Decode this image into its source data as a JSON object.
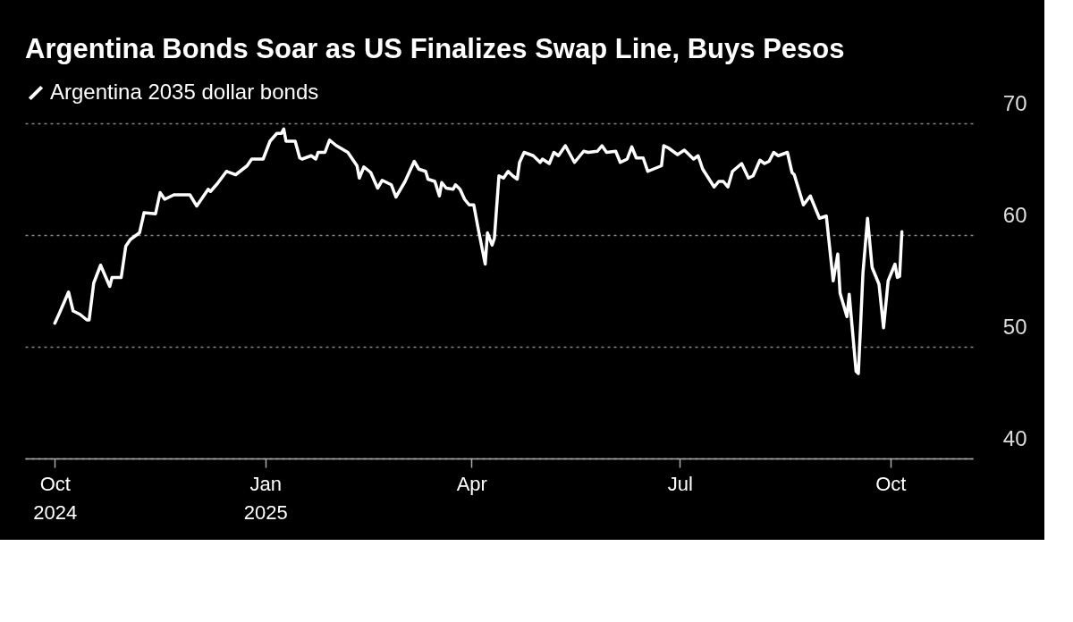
{
  "chart_data": {
    "type": "line",
    "title": "Argentina Bonds Soar as US Finalizes Swap Line, Buys Pesos",
    "x": [
      "2024-10-01",
      "2024-10-03",
      "2024-10-07",
      "2024-10-09",
      "2024-10-12",
      "2024-10-15",
      "2024-10-16",
      "2024-10-18",
      "2024-10-21",
      "2024-10-25",
      "2024-10-26",
      "2024-10-30",
      "2024-11-01",
      "2024-11-03",
      "2024-11-07",
      "2024-11-09",
      "2024-11-14",
      "2024-11-16",
      "2024-11-18",
      "2024-11-22",
      "2024-11-29",
      "2024-12-02",
      "2024-12-07",
      "2024-12-08",
      "2024-12-11",
      "2024-12-15",
      "2024-12-19",
      "2024-12-24",
      "2024-12-26",
      "2024-12-31",
      "2025-01-03",
      "2025-01-06",
      "2025-01-08",
      "2025-01-09",
      "2025-01-10",
      "2025-01-14",
      "2025-01-16",
      "2025-01-17",
      "2025-01-21",
      "2025-01-23",
      "2025-01-24",
      "2025-01-27",
      "2025-01-29",
      "2025-02-01",
      "2025-02-06",
      "2025-02-10",
      "2025-02-11",
      "2025-02-13",
      "2025-02-16",
      "2025-02-19",
      "2025-02-21",
      "2025-02-25",
      "2025-02-27",
      "2025-03-03",
      "2025-03-07",
      "2025-03-09",
      "2025-03-12",
      "2025-03-13",
      "2025-03-16",
      "2025-03-18",
      "2025-03-19",
      "2025-03-21",
      "2025-03-24",
      "2025-03-25",
      "2025-03-27",
      "2025-03-29",
      "2025-03-31",
      "2025-04-02",
      "2025-04-04",
      "2025-04-07",
      "2025-04-08",
      "2025-04-10",
      "2025-04-11",
      "2025-04-13",
      "2025-04-15",
      "2025-04-17",
      "2025-04-19",
      "2025-04-21",
      "2025-04-22",
      "2025-04-24",
      "2025-04-28",
      "2025-05-01",
      "2025-05-02",
      "2025-05-05",
      "2025-05-07",
      "2025-05-09",
      "2025-05-12",
      "2025-05-16",
      "2025-05-20",
      "2025-05-22",
      "2025-05-26",
      "2025-05-28",
      "2025-05-30",
      "2025-06-03",
      "2025-06-05",
      "2025-06-08",
      "2025-06-10",
      "2025-06-12",
      "2025-06-15",
      "2025-06-17",
      "2025-06-23",
      "2025-06-24",
      "2025-06-26",
      "2025-06-30",
      "2025-07-03",
      "2025-07-07",
      "2025-07-09",
      "2025-07-11",
      "2025-07-16",
      "2025-07-18",
      "2025-07-20",
      "2025-07-22",
      "2025-07-24",
      "2025-07-28",
      "2025-07-31",
      "2025-08-02",
      "2025-08-05",
      "2025-08-07",
      "2025-08-09",
      "2025-08-11",
      "2025-08-13",
      "2025-08-17",
      "2025-08-19",
      "2025-08-20",
      "2025-08-24",
      "2025-08-27",
      "2025-08-31",
      "2025-09-03",
      "2025-09-06",
      "2025-09-08",
      "2025-09-09",
      "2025-09-12",
      "2025-09-13",
      "2025-09-16",
      "2025-09-17",
      "2025-09-19",
      "2025-09-21",
      "2025-09-23",
      "2025-09-26",
      "2025-09-28",
      "2025-09-30",
      "2025-10-03",
      "2025-10-04",
      "2025-10-05",
      "2025-10-06"
    ],
    "series": [
      {
        "name": "Argentina 2035 dollar bonds",
        "color": "#ffffff",
        "values": [
          52.1,
          53.0,
          54.9,
          53.2,
          52.9,
          52.4,
          52.4,
          55.7,
          57.3,
          55.4,
          56.2,
          56.2,
          59.0,
          59.6,
          60.2,
          62.0,
          61.9,
          63.8,
          63.2,
          63.6,
          63.6,
          62.6,
          64.1,
          63.9,
          64.6,
          65.7,
          65.4,
          66.2,
          66.8,
          66.8,
          68.4,
          69.1,
          69.1,
          69.5,
          68.4,
          68.4,
          66.9,
          66.8,
          67.1,
          66.8,
          67.4,
          67.4,
          68.5,
          68.0,
          67.4,
          66.2,
          65.1,
          66.1,
          65.6,
          64.2,
          64.9,
          64.5,
          63.4,
          64.8,
          66.6,
          65.9,
          65.7,
          65.0,
          64.8,
          63.5,
          64.7,
          64.2,
          64.1,
          64.5,
          64.1,
          63.2,
          62.7,
          62.7,
          60.5,
          57.4,
          60.2,
          59.1,
          59.7,
          65.3,
          65.1,
          65.7,
          65.3,
          65.0,
          66.5,
          67.4,
          67.1,
          66.5,
          66.8,
          66.4,
          67.4,
          67.1,
          68.0,
          66.5,
          67.5,
          67.4,
          67.5,
          68.0,
          67.4,
          67.5,
          66.5,
          66.8,
          67.9,
          66.9,
          66.9,
          65.7,
          66.2,
          68.0,
          67.8,
          67.2,
          67.6,
          66.8,
          67.1,
          65.9,
          64.3,
          64.8,
          64.8,
          64.3,
          65.7,
          66.4,
          65.1,
          65.3,
          66.7,
          66.4,
          66.6,
          67.4,
          67.1,
          67.4,
          65.6,
          65.4,
          62.7,
          63.5,
          61.5,
          61.7,
          55.9,
          58.3,
          54.8,
          52.7,
          54.7,
          47.8,
          47.6,
          56.6,
          61.5,
          57.1,
          55.6,
          51.7,
          55.9,
          57.4,
          56.2,
          56.3,
          60.3
        ]
      }
    ],
    "xlim": [
      "2024-09-18",
      "2025-11-06"
    ],
    "xticks": [
      {
        "value": "2024-10-01",
        "label": "Oct 2024"
      },
      {
        "value": "2025-01-01",
        "label": "Jan 2025"
      },
      {
        "value": "2025-04-01",
        "label": "Apr"
      },
      {
        "value": "2025-07-01",
        "label": "Jul"
      },
      {
        "value": "2025-10-01",
        "label": "Oct"
      }
    ],
    "ylim": [
      40,
      70
    ],
    "yticks": [
      40,
      50,
      60,
      70
    ],
    "grid": "y",
    "legend": "top left"
  }
}
